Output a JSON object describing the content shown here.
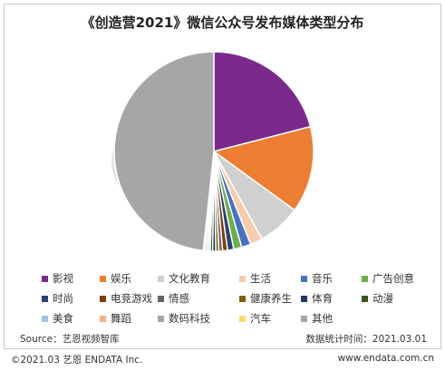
{
  "title": "《创造营2021》微信公众号发布媒体类型分布",
  "watermark": {
    "cn": "艺恩",
    "en": "endata"
  },
  "source": "Source：艺恩视频智库",
  "stat_time": "数据统计时间：2021.03.01",
  "copyright": "©2021.03 艺恩 ENDATA Inc.",
  "website": "www.endata.com.cn",
  "chart_data": {
    "type": "pie",
    "title": "《创造营2021》微信公众号发布媒体类型分布",
    "start_angle_deg": 0,
    "direction": "clockwise",
    "series": [
      {
        "name": "影视",
        "value": 21.0,
        "color": "#7B2A8C"
      },
      {
        "name": "娱乐",
        "value": 14.0,
        "color": "#ED7D31"
      },
      {
        "name": "文化教育",
        "value": 7.0,
        "color": "#D0D0D0"
      },
      {
        "name": "生活",
        "value": 2.0,
        "color": "#F8CBAD"
      },
      {
        "name": "音乐",
        "value": 1.5,
        "color": "#4472C4"
      },
      {
        "name": "广告创意",
        "value": 1.3,
        "color": "#70AD47"
      },
      {
        "name": "时尚",
        "value": 1.0,
        "color": "#264478"
      },
      {
        "name": "电竞游戏",
        "value": 0.8,
        "color": "#843C0C"
      },
      {
        "name": "情感",
        "value": 0.6,
        "color": "#636363"
      },
      {
        "name": "健康养生",
        "value": 0.5,
        "color": "#7F6000"
      },
      {
        "name": "体育",
        "value": 0.5,
        "color": "#203864"
      },
      {
        "name": "动漫",
        "value": 0.4,
        "color": "#375623"
      },
      {
        "name": "美食",
        "value": 0.3,
        "color": "#9DC3E6"
      },
      {
        "name": "舞蹈",
        "value": 0.3,
        "color": "#F4B183"
      },
      {
        "name": "数码科技",
        "value": 0.3,
        "color": "#A5A5A5"
      },
      {
        "name": "汽车",
        "value": 0.2,
        "color": "#FFD966"
      },
      {
        "name": "其他",
        "value": 48.3,
        "color": "#A6A6A6"
      }
    ]
  }
}
